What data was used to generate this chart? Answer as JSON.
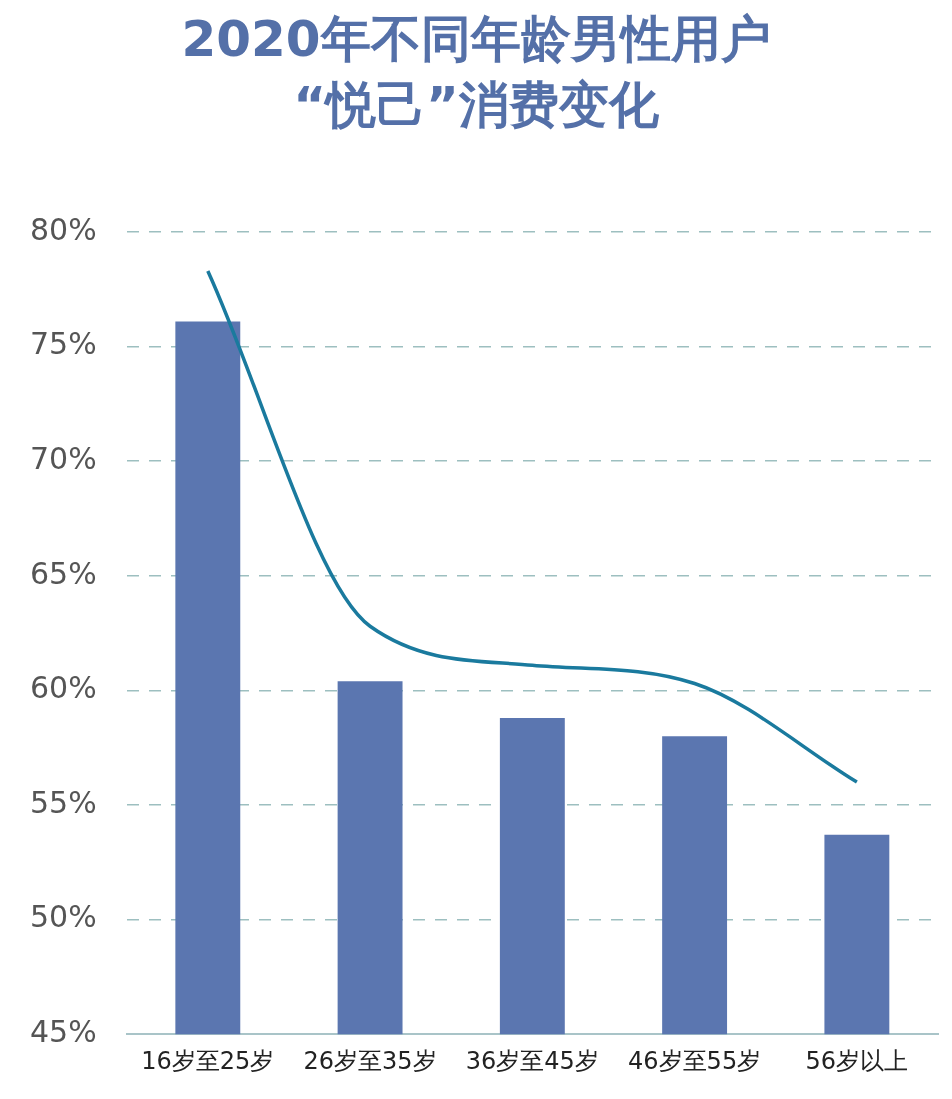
{
  "chart_data": {
    "type": "bar",
    "title": "2020年不同年龄男性用户\n“悦己”消费变化",
    "categories": [
      "16岁至25岁",
      "26岁至35岁",
      "36岁至45岁",
      "46岁至55岁",
      "56岁以上"
    ],
    "series": [
      {
        "color": "#5b76b0",
        "values": [
          76.1,
          60.4,
          58.8,
          58.0,
          53.7
        ]
      },
      {
        "type": "line",
        "color": "#1a7a9e",
        "values": [
          78.3,
          62.8,
          61.1,
          60.3,
          56.0
        ]
      }
    ],
    "ylim": [
      45,
      80
    ],
    "yticks": [
      {
        "value": 45,
        "label": "45%"
      },
      {
        "value": 50,
        "label": "50%"
      },
      {
        "value": 55,
        "label": "55%"
      },
      {
        "value": 60,
        "label": "60%"
      },
      {
        "value": 65,
        "label": "65%"
      },
      {
        "value": 70,
        "label": "70%"
      },
      {
        "value": 75,
        "label": "75%"
      },
      {
        "value": 80,
        "label": "80%"
      }
    ],
    "grid": "y",
    "marker": "none"
  }
}
